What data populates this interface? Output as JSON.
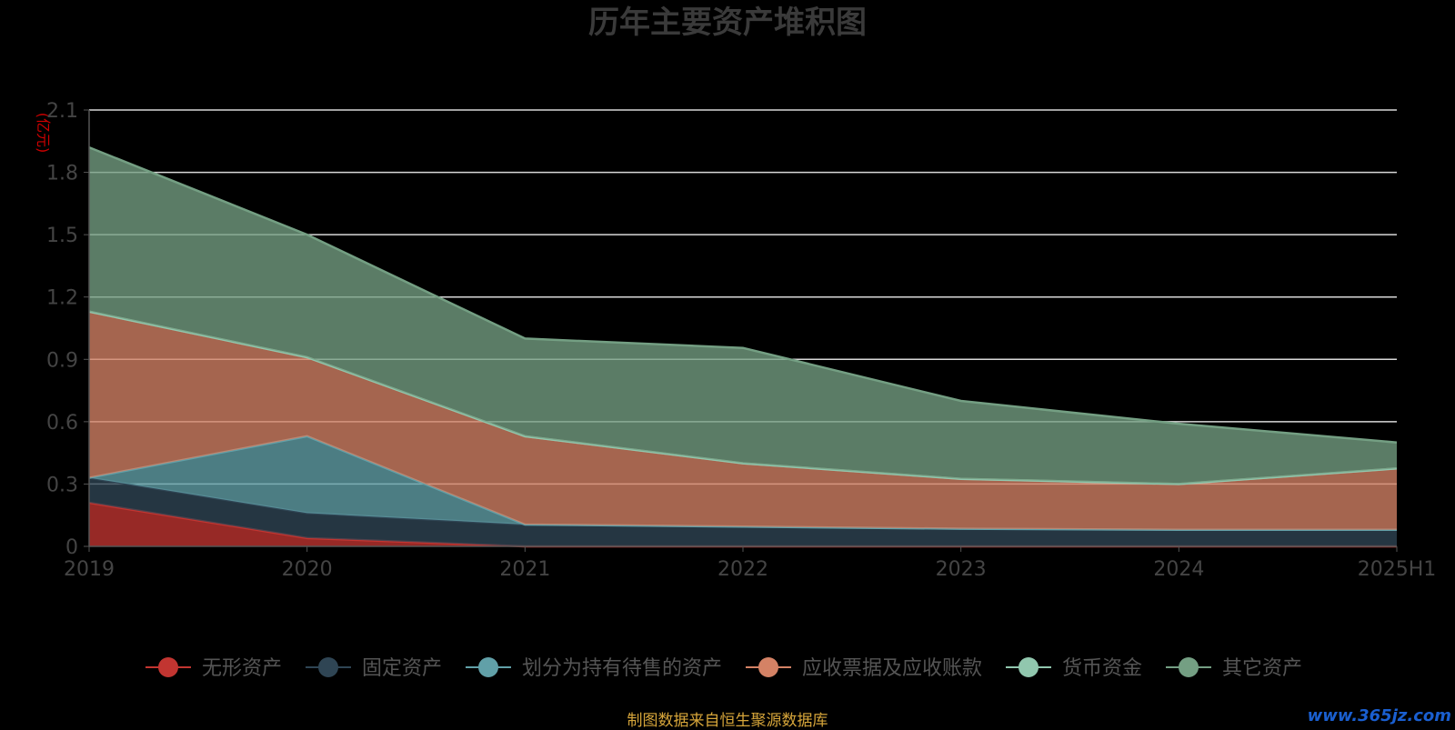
{
  "chart_data": {
    "type": "area",
    "stacked": true,
    "title": "历年主要资产堆积图",
    "ylabel": "(亿元)",
    "x": [
      "2019",
      "2020",
      "2021",
      "2022",
      "2023",
      "2024",
      "2025H1"
    ],
    "ylim": [
      0,
      2.1
    ],
    "yticks": [
      0,
      0.3,
      0.6,
      0.9,
      1.2,
      1.5,
      1.8,
      2.1
    ],
    "grid": true,
    "legend_position": "bottom",
    "series": [
      {
        "name": "无形资产",
        "color": "#c23531",
        "values": [
          0.21,
          0.04,
          0.0,
          0.0,
          0.0,
          0.0,
          0.0
        ]
      },
      {
        "name": "固定资产",
        "color": "#2f4554",
        "values": [
          0.12,
          0.12,
          0.105,
          0.095,
          0.085,
          0.08,
          0.08
        ]
      },
      {
        "name": "划分为持有待售的资产",
        "color": "#61a0a8",
        "values": [
          0.0,
          0.37,
          0.0,
          0.0,
          0.0,
          0.0,
          0.0
        ]
      },
      {
        "name": "应收票据及应收账款",
        "color": "#d48265",
        "values": [
          0.8,
          0.38,
          0.425,
          0.305,
          0.24,
          0.22,
          0.295
        ]
      },
      {
        "name": "货币资金",
        "color": "#91c7ae",
        "values": [
          0.0,
          0.0,
          0.0,
          0.0,
          0.0,
          0.0,
          0.0
        ]
      },
      {
        "name": "其它资产",
        "color": "#749f83",
        "values": [
          0.79,
          0.59,
          0.47,
          0.555,
          0.375,
          0.29,
          0.125
        ]
      }
    ]
  },
  "footer": {
    "source": "制图数据来自恒生聚源数据库",
    "watermark": "www.365jz.com"
  },
  "colors": {
    "title": "#3a3a3a",
    "axis_text": "#444444",
    "unit_label": "#cc0000",
    "grid": "#d8d8d8",
    "legend_text": "#555555"
  }
}
